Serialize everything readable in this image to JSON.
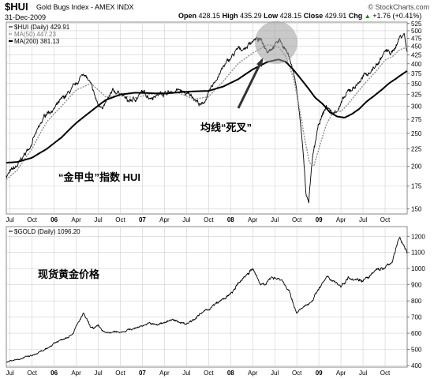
{
  "header": {
    "symbol": "$HUI",
    "index_name": "Gold Bugs Index - AMEX INDX",
    "date": "31-Dec-2009",
    "open_label": "Open",
    "open": "428.15",
    "high_label": "High",
    "high": "435.29",
    "low_label": "Low",
    "low": "428.15",
    "close_label": "Close",
    "close": "429.91",
    "chg_label": "Chg",
    "chg": "+1.76 (+0.41%)",
    "chg_arrow": "▲",
    "watermark": "© StockCharts.com"
  },
  "colors": {
    "price": "#000000",
    "ma50": "#8f8f8f",
    "ma200": "#000000",
    "grid": "#cfcfcf",
    "frame": "#888888",
    "circle": "#9c9c9c",
    "arrow": "#333333",
    "chg_positive": "#008800"
  },
  "chart_data": [
    {
      "type": "line",
      "scale": "log",
      "legend": [
        {
          "text": "$HUI (Daily) 429.91",
          "style": "solid"
        },
        {
          "text": "MA(50) 447.23",
          "style": "dotted"
        },
        {
          "text": "MA(200) 381.13",
          "style": "solid-thick"
        }
      ],
      "ylim": [
        145,
        530
      ],
      "yticks": [
        150,
        175,
        200,
        225,
        250,
        275,
        300,
        325,
        350,
        375,
        400,
        425,
        450,
        475,
        500,
        525
      ],
      "xticks": [
        "Jul",
        "Oct",
        "06",
        "Apr",
        "Jul",
        "Oct",
        "07",
        "Apr",
        "Jul",
        "Oct",
        "08",
        "Apr",
        "Jul",
        "Oct",
        "09",
        "Apr",
        "Jul",
        "Oct"
      ],
      "xtick_t": [
        0,
        3,
        6,
        9,
        12,
        15,
        18,
        21,
        24,
        27,
        30,
        33,
        36,
        39,
        42,
        45,
        48,
        51
      ],
      "xrange_t": [
        -0.5,
        54
      ],
      "annotations": {
        "death_cross_label": "均线“死叉”",
        "index_label": "“金甲虫”指数  HUI"
      },
      "anchors_t": [
        -0.5,
        1,
        2.5,
        4,
        5,
        6,
        7.5,
        9,
        10,
        11,
        12,
        13,
        14,
        15,
        16,
        17,
        18,
        19,
        20,
        21,
        22,
        23,
        24,
        25,
        26,
        27,
        28,
        29,
        30,
        31,
        32,
        33,
        34,
        35,
        36,
        36.7,
        37.5,
        38.2,
        38.8,
        39.3,
        39.7,
        40.2,
        40.6,
        41.2,
        42,
        43,
        44,
        45,
        46,
        47,
        48,
        49,
        50,
        51,
        52,
        53,
        53.6,
        54
      ],
      "anchors_value": [
        188,
        200,
        225,
        260,
        288,
        295,
        320,
        345,
        378,
        345,
        300,
        305,
        330,
        330,
        310,
        315,
        330,
        320,
        325,
        330,
        330,
        335,
        325,
        320,
        300,
        325,
        360,
        390,
        415,
        440,
        445,
        470,
        470,
        440,
        455,
        470,
        440,
        405,
        355,
        290,
        240,
        170,
        155,
        215,
        265,
        300,
        285,
        305,
        330,
        345,
        365,
        380,
        400,
        435,
        430,
        480,
        490,
        430
      ],
      "ma50_t": [
        -0.5,
        1,
        3,
        5,
        7,
        9,
        11,
        13,
        15,
        17,
        19,
        21,
        23,
        25,
        27,
        29,
        31,
        33,
        35,
        36.5,
        37.5,
        38.5,
        39.3,
        40,
        40.7,
        41.3,
        42,
        43,
        44,
        45,
        46,
        47,
        48,
        49,
        50,
        51,
        52,
        53,
        54
      ],
      "ma50_value": [
        183,
        195,
        225,
        270,
        300,
        335,
        350,
        320,
        322,
        318,
        325,
        330,
        328,
        315,
        320,
        355,
        400,
        430,
        455,
        448,
        420,
        365,
        300,
        245,
        205,
        200,
        225,
        265,
        290,
        290,
        305,
        325,
        345,
        365,
        385,
        410,
        420,
        440,
        447
      ],
      "ma200_t": [
        -0.5,
        1,
        3,
        5,
        7,
        9,
        11,
        13,
        15,
        17,
        19,
        21,
        23,
        25,
        27,
        29,
        31,
        33,
        35,
        36.5,
        37.5,
        38.5,
        39.5,
        40.5,
        41.5,
        42.5,
        43.5,
        44.5,
        45.5,
        46.5,
        47.5,
        48.5,
        49.5,
        50.5,
        51.5,
        52.5,
        53.5,
        54
      ],
      "ma200_value": [
        205,
        206,
        212,
        225,
        243,
        268,
        290,
        313,
        325,
        329,
        328,
        327,
        330,
        332,
        333,
        343,
        360,
        385,
        405,
        412,
        405,
        385,
        362,
        340,
        318,
        305,
        288,
        280,
        278,
        285,
        295,
        310,
        322,
        335,
        350,
        362,
        375,
        381
      ]
    },
    {
      "type": "line",
      "legend": [
        {
          "text": "$GOLD (Daily) 1096.20",
          "style": "solid"
        }
      ],
      "ylim": [
        390,
        1260
      ],
      "yticks": [
        400,
        500,
        600,
        700,
        800,
        900,
        1000,
        1100,
        1200
      ],
      "xticks": [
        "Jul",
        "Oct",
        "06",
        "Apr",
        "Jul",
        "Oct",
        "07",
        "Apr",
        "Jul",
        "Oct",
        "08",
        "Apr",
        "Jul",
        "Oct",
        "09",
        "Apr",
        "Jul",
        "Oct"
      ],
      "xtick_t": [
        0,
        3,
        6,
        9,
        12,
        15,
        18,
        21,
        24,
        27,
        30,
        33,
        36,
        39,
        42,
        45,
        48,
        51
      ],
      "xrange_t": [
        -0.5,
        54
      ],
      "annotations": {
        "gold_label": "现货黄金价格"
      },
      "anchors_t": [
        -0.5,
        3,
        5,
        6,
        7,
        8.5,
        10,
        11,
        12,
        13,
        15,
        17,
        18,
        19,
        20,
        21,
        22,
        24,
        26,
        28,
        30,
        31,
        32,
        33,
        34,
        35,
        36,
        37,
        38,
        38.5,
        39,
        40,
        41,
        42,
        43,
        44,
        45,
        46,
        47,
        48,
        49,
        50,
        51,
        52,
        52.5,
        53,
        53.6,
        54
      ],
      "anchors_value": [
        425,
        460,
        500,
        540,
        560,
        600,
        720,
        630,
        640,
        600,
        610,
        630,
        650,
        660,
        650,
        670,
        680,
        660,
        720,
        780,
        840,
        900,
        960,
        1000,
        900,
        920,
        950,
        930,
        850,
        780,
        730,
        760,
        800,
        880,
        940,
        930,
        890,
        950,
        940,
        930,
        950,
        1000,
        1000,
        1050,
        1120,
        1200,
        1140,
        1096
      ]
    }
  ]
}
